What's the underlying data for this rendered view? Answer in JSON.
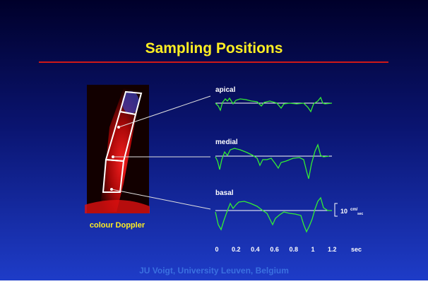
{
  "header": {
    "title": "Sampling Positions"
  },
  "image": {
    "caption": "colour Doppler"
  },
  "traces": [
    {
      "label": "apical"
    },
    {
      "label": "medial"
    },
    {
      "label": "basal"
    }
  ],
  "scale": {
    "value": "10",
    "unit_top": "cm/",
    "unit_bottom": "sec"
  },
  "time_axis": {
    "ticks": [
      "0",
      "0.2",
      "0.4",
      "0.6",
      "0.8",
      "1",
      "1.2"
    ],
    "unit": "sec"
  },
  "footer": {
    "credit": "JU Voigt, University Leuven, Belgium"
  }
}
